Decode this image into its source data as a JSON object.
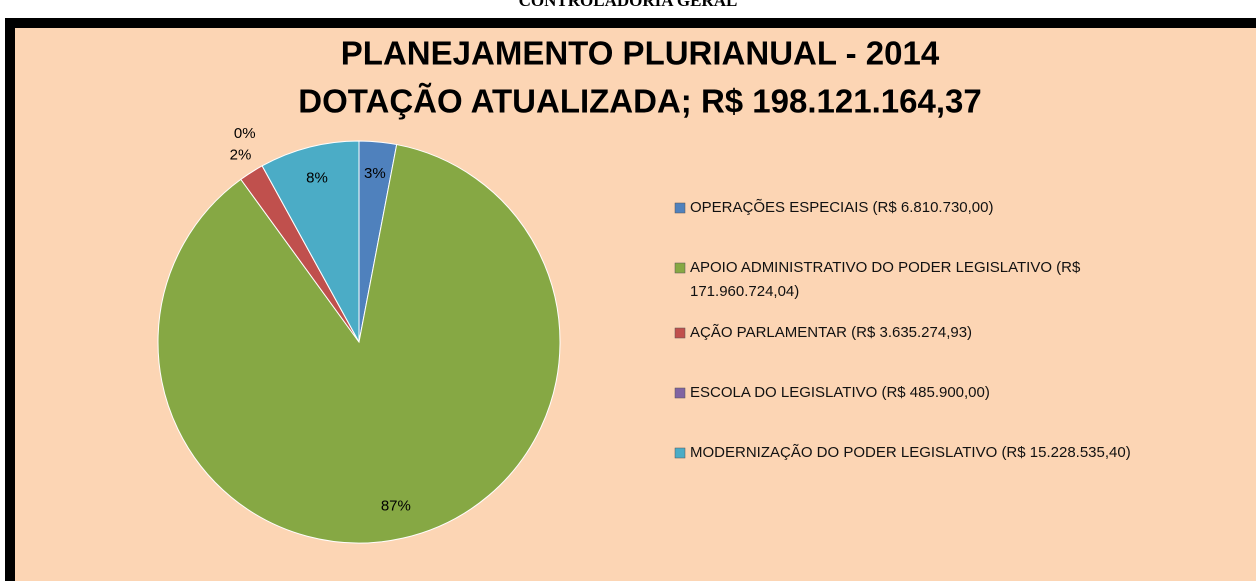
{
  "header": "CONTROLADORIA GERAL",
  "chart_data": {
    "type": "pie",
    "title": [
      "PLANEJAMENTO PLURIANUAL - 2014",
      "DOTAÇÃO ATUALIZADA; R$ 198.121.164,37"
    ],
    "categories": [
      "OPERAÇÕES ESPECIAIS (R$ 6.810.730,00)",
      "APOIO ADMINISTRATIVO  DO PODER LEGISLATIVO (R$ 171.960.724,04)",
      "AÇÃO PARLAMENTAR (R$ 3.635.274,93)",
      "ESCOLA DO LEGISLATIVO  (R$ 485.900,00)",
      "MODERNIZAÇÃO DO PODER LEGISLATIVO  (R$ 15.228.535,40)"
    ],
    "values": [
      3,
      87,
      2,
      0,
      8
    ],
    "value_labels": [
      "3%",
      "87%",
      "2%",
      "0%",
      "8%"
    ],
    "colors": [
      "#4f81bd",
      "#86a844",
      "#c0504d",
      "#8064a2",
      "#4bacc6"
    ],
    "legend": "right"
  }
}
